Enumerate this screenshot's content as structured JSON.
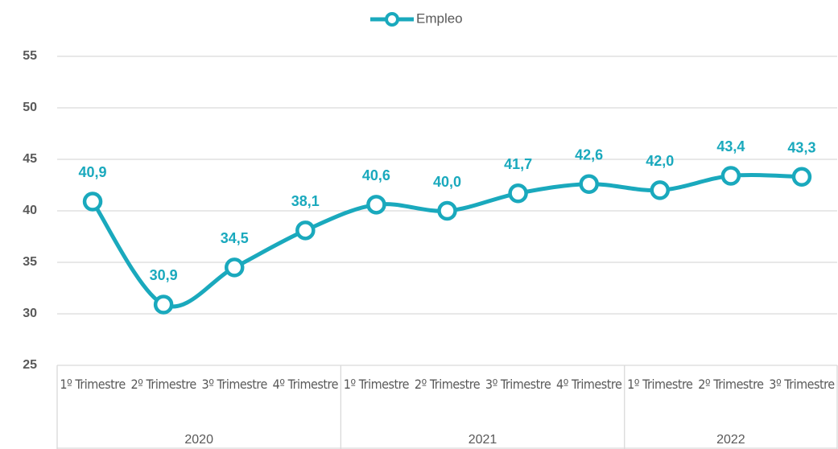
{
  "chart_data": {
    "type": "line",
    "categories": [
      "1º Trimestre",
      "2º Trimestre",
      "3º Trimestre",
      "4º Trimestre",
      "1º Trimestre",
      "2º Trimestre",
      "3º Trimestre",
      "4º Trimestre",
      "1º Trimestre",
      "2º Trimestre",
      "3º Trimestre"
    ],
    "groups": [
      {
        "label": "2020",
        "count": 4
      },
      {
        "label": "2021",
        "count": 4
      },
      {
        "label": "2022",
        "count": 3
      }
    ],
    "series": [
      {
        "name": "Empleo",
        "color": "#1aa9bd",
        "values": [
          40.9,
          30.9,
          34.5,
          38.1,
          40.6,
          40.0,
          41.7,
          42.6,
          42.0,
          43.4,
          43.3
        ],
        "value_labels": [
          "40,9",
          "30,9",
          "34,5",
          "38,1",
          "40,6",
          "40,0",
          "41,7",
          "42,6",
          "42,0",
          "43,4",
          "43,3"
        ]
      }
    ],
    "ylim": [
      25,
      55
    ],
    "yticks": [
      25,
      30,
      35,
      40,
      45,
      50,
      55
    ],
    "grid": true,
    "legend": "top",
    "smooth": true
  }
}
